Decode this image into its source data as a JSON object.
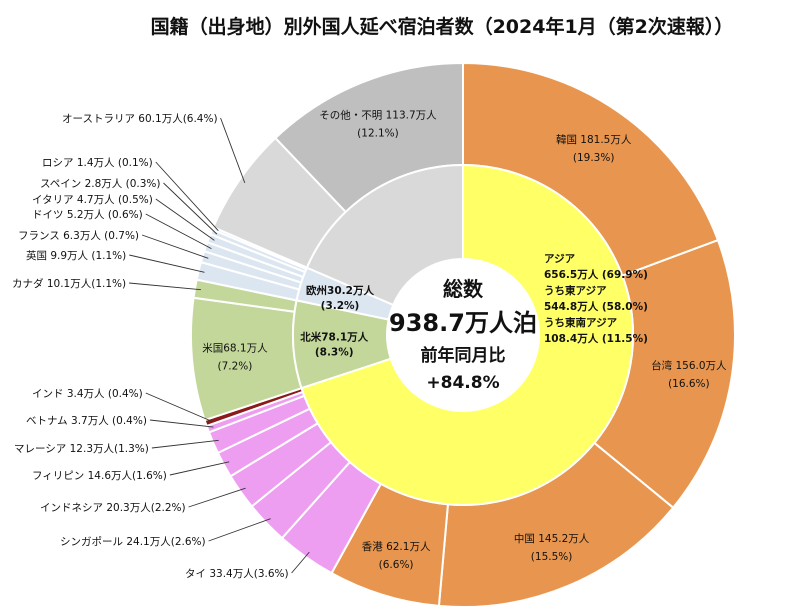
{
  "chart_data": {
    "type": "pie",
    "title": "国籍（出身地）別外国人延べ宿泊者数（2024年1月（第2次速報））",
    "center": {
      "label": "総数",
      "total": "938.7万人泊",
      "change_label": "前年同月比",
      "change_value": "+84.8%"
    },
    "inner_ring": [
      {
        "name": "アジア",
        "value": 656.5,
        "color": "#FFFF66",
        "lines": [
          "アジア",
          "656.5万人 (69.9%)",
          "うち東アジア",
          "544.8万人 (58.0%)",
          "うち東南アジア",
          "108.4万人 (11.5%)"
        ]
      },
      {
        "name": "北米",
        "value": 78.1,
        "color": "#C4D79B",
        "lines": [
          "北米78.1万人",
          "(8.3%)"
        ]
      },
      {
        "name": "欧州",
        "value": 30.2,
        "color": "#DCE6F1",
        "lines": [
          "欧州30.2万人",
          "(3.2%)"
        ]
      },
      {
        "name": "その他",
        "value": 173.8,
        "color": "#D9D9D9",
        "lines": []
      }
    ],
    "outer_ring": [
      {
        "name": "韓国",
        "value": 181.5,
        "color": "#E8964F",
        "inside": [
          "韓国 181.5万人",
          "(19.3%)"
        ]
      },
      {
        "name": "台湾",
        "value": 156.0,
        "color": "#E8964F",
        "inside": [
          "台湾 156.0万人",
          "(16.6%)"
        ]
      },
      {
        "name": "中国",
        "value": 145.2,
        "color": "#E8964F",
        "inside": [
          "中国 145.2万人",
          "(15.5%)"
        ]
      },
      {
        "name": "香港",
        "value": 62.1,
        "color": "#E8964F",
        "inside": [
          "香港 62.1万人",
          "(6.6%)"
        ]
      },
      {
        "name": "タイ",
        "value": 33.4,
        "color": "#EE9EF0",
        "outside": "タイ 33.4万人(3.6%)"
      },
      {
        "name": "シンガポール",
        "value": 24.1,
        "color": "#EE9EF0",
        "outside": "シンガポール 24.1万人(2.6%)"
      },
      {
        "name": "インドネシア",
        "value": 20.3,
        "color": "#EE9EF0",
        "outside": "インドネシア 20.3万人(2.2%)"
      },
      {
        "name": "フィリピン",
        "value": 14.6,
        "color": "#EE9EF0",
        "outside": "フィリピン 14.6万人(1.6%)"
      },
      {
        "name": "マレーシア",
        "value": 12.3,
        "color": "#EE9EF0",
        "outside": "マレーシア 12.3万人(1.3%)"
      },
      {
        "name": "ベトナム",
        "value": 3.7,
        "color": "#EE9EF0",
        "outside": "ベトナム 3.7万人 (0.4%)"
      },
      {
        "name": "インド",
        "value": 3.4,
        "color": "#8B1A1A",
        "outside": "インド 3.4万人 (0.4%)"
      },
      {
        "name": "米国",
        "value": 68.1,
        "color": "#C4D79B",
        "inside": [
          "米国68.1万人",
          "(7.2%)"
        ]
      },
      {
        "name": "カナダ",
        "value": 10.1,
        "color": "#C4D79B",
        "outside": "カナダ 10.1万人(1.1%)"
      },
      {
        "name": "英国",
        "value": 9.9,
        "color": "#DCE6F1",
        "outside": "英国 9.9万人 (1.1%)"
      },
      {
        "name": "フランス",
        "value": 6.3,
        "color": "#DCE6F1",
        "outside": "フランス 6.3万人 (0.7%)"
      },
      {
        "name": "ドイツ",
        "value": 5.2,
        "color": "#DCE6F1",
        "outside": "ドイツ 5.2万人 (0.6%)"
      },
      {
        "name": "イタリア",
        "value": 4.7,
        "color": "#DCE6F1",
        "outside": "イタリア 4.7万人 (0.5%)"
      },
      {
        "name": "スペイン",
        "value": 2.8,
        "color": "#DCE6F1",
        "outside": "スペイン 2.8万人 (0.3%)"
      },
      {
        "name": "ロシア",
        "value": 1.4,
        "color": "#DCE6F1",
        "outside": "ロシア 1.4万人 (0.1%)"
      },
      {
        "name": "オーストラリア",
        "value": 60.1,
        "color": "#D9D9D9",
        "outside": "オーストラリア 60.1万人(6.4%)"
      },
      {
        "name": "その他・不明",
        "value": 113.7,
        "color": "#BFBFBF",
        "inside": [
          "その他・不明 113.7万人",
          "(12.1%)"
        ]
      }
    ]
  }
}
